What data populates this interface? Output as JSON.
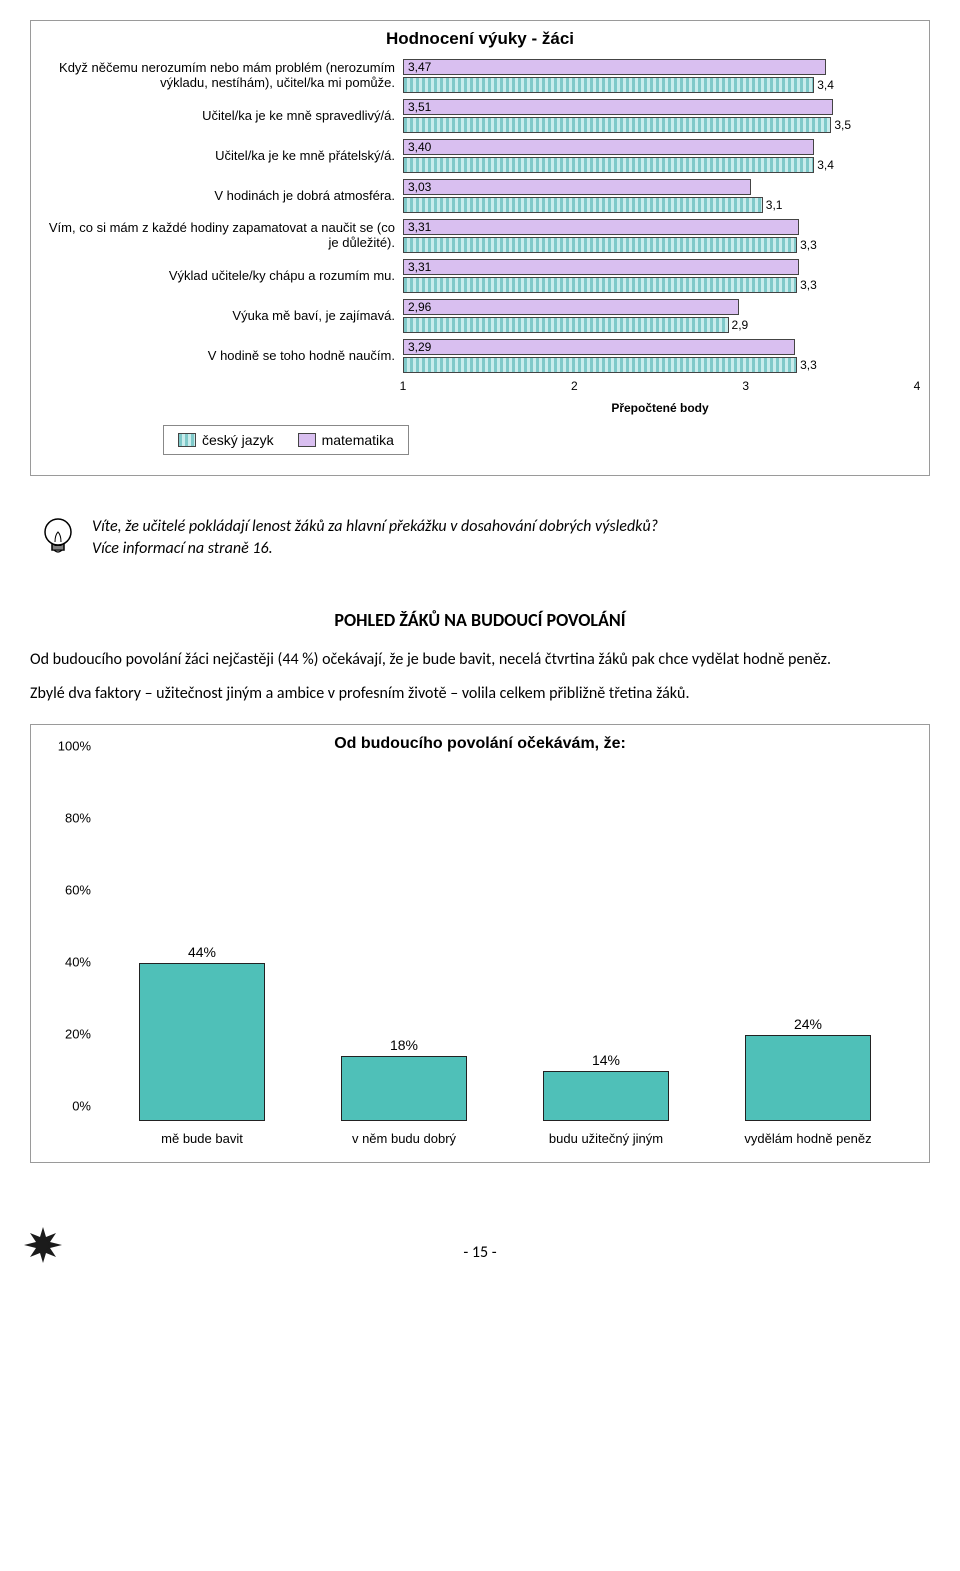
{
  "chart1": {
    "type": "horizontal-bar-grouped",
    "title": "Hodnocení výuky - žáci",
    "xaxis_label": "Přepočtené body",
    "xlim": [
      1,
      4
    ],
    "xticks": [
      1,
      2,
      3,
      4
    ],
    "series": [
      {
        "name": "český jazyk",
        "color_css": "repeating-linear-gradient(90deg, #7fc9c9 0 3px, #c9ecec 3px 6px)",
        "swatch_class": "bar-teal"
      },
      {
        "name": "matematika",
        "color_css": "#d9bff0",
        "swatch_class": "bar-purple"
      }
    ],
    "rows": [
      {
        "label": "Když něčemu nerozumím nebo mám problém (nerozumím výkladu, nestíhám), učitel/ka mi pomůže.",
        "math": "3,47",
        "math_v": 3.47,
        "cz": "3,4",
        "cz_v": 3.4
      },
      {
        "label": "Učitel/ka je ke mně spravedlivý/á.",
        "math": "3,51",
        "math_v": 3.51,
        "cz": "3,5",
        "cz_v": 3.5
      },
      {
        "label": "Učitel/ka je ke mně přátelský/á.",
        "math": "3,40",
        "math_v": 3.4,
        "cz": "3,4",
        "cz_v": 3.4
      },
      {
        "label": "V hodinách je dobrá atmosféra.",
        "math": "3,03",
        "math_v": 3.03,
        "cz": "3,1",
        "cz_v": 3.1
      },
      {
        "label": "Vím, co si mám z každé hodiny zapamatovat a naučit se (co je důležité).",
        "math": "3,31",
        "math_v": 3.31,
        "cz": "3,3",
        "cz_v": 3.3
      },
      {
        "label": "Výklad učitele/ky chápu a rozumím mu.",
        "math": "3,31",
        "math_v": 3.31,
        "cz": "3,3",
        "cz_v": 3.3
      },
      {
        "label": "Výuka mě baví, je zajímavá.",
        "math": "2,96",
        "math_v": 2.96,
        "cz": "2,9",
        "cz_v": 2.9
      },
      {
        "label": "V hodině se toho hodně naučím.",
        "math": "3,29",
        "math_v": 3.29,
        "cz": "3,3",
        "cz_v": 3.3
      }
    ],
    "border_color": "#9a9a9a",
    "label_fontsize": 13,
    "title_fontsize": 17
  },
  "tip": {
    "line1": "Víte, že učitelé pokládají lenost žáků za hlavní překážku v dosahování dobrých výsledků?",
    "line2": "Více informací na straně 16."
  },
  "section_heading": "POHLED ŽÁKŮ NA BUDOUCÍ POVOLÁNÍ",
  "para1": "Od budoucího povolání žáci nejčastěji (44 %) očekávají, že je bude bavit, necelá čtvrtina žáků pak chce vydělat hodně peněz.",
  "para2": "Zbylé dva faktory – užitečnost jiným a ambice v profesním životě – volila celkem přibližně třetina žáků.",
  "chart2": {
    "type": "bar",
    "title": "Od budoucího povolání očekávám, že:",
    "ylim": [
      0,
      100
    ],
    "ytick_step": 20,
    "yticks": [
      "0%",
      "20%",
      "40%",
      "60%",
      "80%",
      "100%"
    ],
    "bar_color": "#4fc0b8",
    "bar_border": "#222222",
    "background_color": "#ffffff",
    "bars": [
      {
        "label": "mě bude bavit",
        "value": 44,
        "text": "44%"
      },
      {
        "label": "v něm budu dobrý",
        "value": 18,
        "text": "18%"
      },
      {
        "label": "budu užitečný jiným",
        "value": 14,
        "text": "14%"
      },
      {
        "label": "vydělám hodně peněz",
        "value": 24,
        "text": "24%"
      }
    ],
    "title_fontsize": 16,
    "label_fontsize": 13
  },
  "page_number": "- 15 -"
}
